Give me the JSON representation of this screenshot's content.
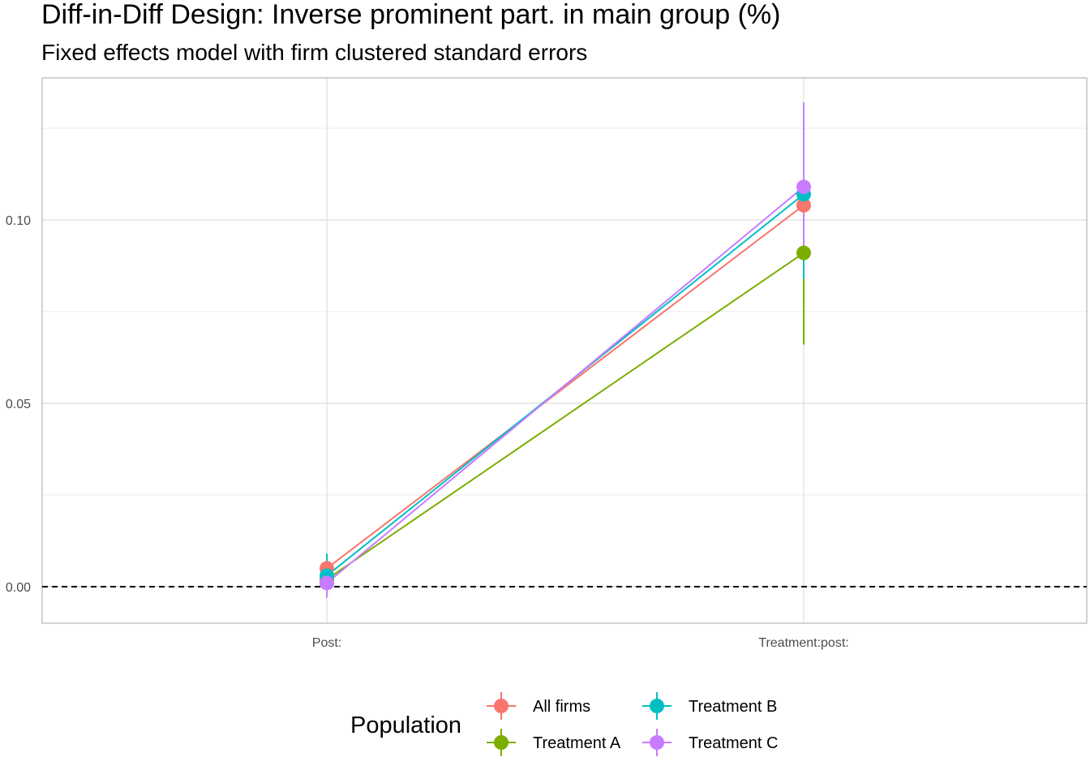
{
  "chart_data": {
    "type": "scatter",
    "title": "Diff-in-Diff Design: Inverse prominent part. in main group (%)",
    "subtitle": "Fixed effects model with firm clustered standard errors",
    "categories": [
      "Post:",
      "Treatment:post:"
    ],
    "ylim": [
      -0.02,
      0.1285
    ],
    "y_ticks": [
      0.0,
      0.05,
      0.1
    ],
    "y_tick_labels": [
      "0.00",
      "0.05",
      "0.10"
    ],
    "reference_line": {
      "y": 0,
      "style": "dashed"
    },
    "grid": true,
    "legend": {
      "title": "Population",
      "position": "bottom"
    },
    "series": [
      {
        "name": "All firms",
        "color": "#F8766D",
        "values": [
          0.005,
          0.104
        ],
        "ci_low": [
          0.003,
          0.097
        ],
        "ci_high": [
          0.007,
          0.111
        ]
      },
      {
        "name": "Treatment A",
        "color": "#7CAE00",
        "values": [
          0.002,
          0.091
        ],
        "ci_low": [
          0.0,
          0.066
        ],
        "ci_high": [
          0.004,
          0.094
        ]
      },
      {
        "name": "Treatment B",
        "color": "#00BFC4",
        "values": [
          0.003,
          0.107
        ],
        "ci_low": [
          -0.003,
          0.084
        ],
        "ci_high": [
          0.009,
          0.11
        ]
      },
      {
        "name": "Treatment C",
        "color": "#C77CFF",
        "values": [
          0.001,
          0.109
        ],
        "ci_low": [
          -0.003,
          0.093
        ],
        "ci_high": [
          0.005,
          0.132
        ]
      }
    ]
  }
}
